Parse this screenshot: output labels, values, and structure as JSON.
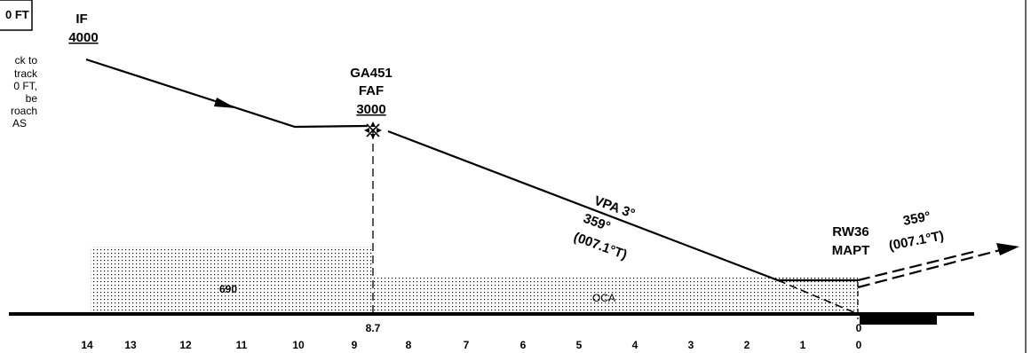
{
  "left_panel": {
    "box_text": "0 FT",
    "note_lines": [
      "ck  to",
      "track",
      "0  FT,",
      "be",
      "roach",
      "AS"
    ]
  },
  "waypoints": {
    "if": {
      "name": "IF",
      "altitude": "4000"
    },
    "faf": {
      "id": "GA451",
      "name": "FAF",
      "altitude": "3000"
    },
    "mapt": {
      "runway": "RW36",
      "name": "MAPT"
    }
  },
  "final_segment": {
    "vpa": "VPA 3°",
    "course_mag": "359°",
    "course_true": "(007.1°T)"
  },
  "missed_approach": {
    "course_mag": "359°",
    "course_true": "(007.1°T)"
  },
  "obstacle": {
    "oca_label": "OCA",
    "intermediate_value": "690"
  },
  "distance_scale": {
    "ticks": [
      "14",
      "13",
      "12",
      "11",
      "10",
      "9",
      "8",
      "7",
      "6",
      "5",
      "4",
      "3",
      "2",
      "1",
      "0"
    ],
    "faf_distance": "8.7",
    "threshold_distance": "0"
  }
}
